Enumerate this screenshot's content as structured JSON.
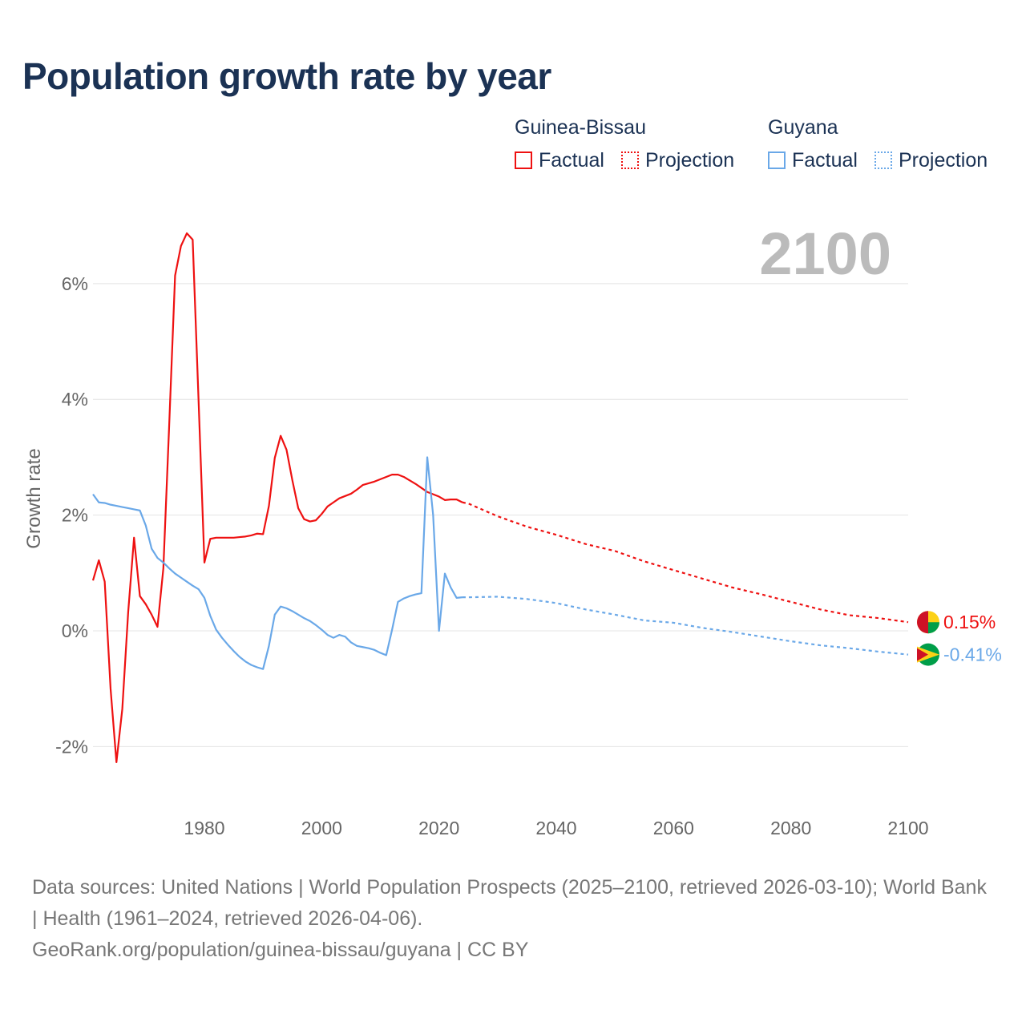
{
  "chart_data": {
    "type": "line",
    "title": "Population growth rate by year",
    "ylabel": "Growth rate",
    "xlabel": "",
    "xlim": [
      1961,
      2100
    ],
    "ylim": [
      -2.95,
      7.3
    ],
    "x_ticks": [
      1980,
      2000,
      2020,
      2040,
      2060,
      2080,
      2100
    ],
    "x_tick_labels": [
      "1980",
      "2000",
      "2020",
      "2040",
      "2060",
      "2080",
      "2100"
    ],
    "y_ticks": [
      -2,
      0,
      2,
      4,
      6
    ],
    "y_tick_labels": [
      "-2%",
      "0%",
      "2%",
      "4%",
      "6%"
    ],
    "grid": true,
    "legend_position": "top-right",
    "year_label": "2100",
    "legend": {
      "group1": "Guinea-Bissau",
      "group2": "Guyana",
      "factual": "Factual",
      "projection": "Projection"
    },
    "series": [
      {
        "name": "Guinea-Bissau",
        "color": "#ee1111",
        "end_label": "0.15%",
        "factual": {
          "x": [
            1961,
            1962,
            1963,
            1964,
            1965,
            1966,
            1967,
            1968,
            1969,
            1970,
            1971,
            1972,
            1973,
            1974,
            1975,
            1976,
            1977,
            1978,
            1979,
            1980,
            1981,
            1982,
            1983,
            1984,
            1985,
            1986,
            1987,
            1988,
            1989,
            1990,
            1991,
            1992,
            1993,
            1994,
            1995,
            1996,
            1997,
            1998,
            1999,
            2000,
            2001,
            2002,
            2003,
            2004,
            2005,
            2006,
            2007,
            2008,
            2009,
            2010,
            2011,
            2012,
            2013,
            2014,
            2015,
            2016,
            2017,
            2018,
            2019,
            2020,
            2021,
            2022,
            2023,
            2024
          ],
          "y": [
            0.87,
            1.22,
            0.85,
            -1.0,
            -2.27,
            -1.35,
            0.32,
            1.61,
            0.6,
            0.46,
            0.28,
            0.07,
            1.08,
            3.57,
            6.14,
            6.65,
            6.87,
            6.76,
            3.99,
            1.18,
            1.59,
            1.61,
            1.61,
            1.61,
            1.61,
            1.62,
            1.63,
            1.65,
            1.68,
            1.67,
            2.16,
            2.99,
            3.37,
            3.13,
            2.6,
            2.12,
            1.93,
            1.89,
            1.91,
            2.02,
            2.15,
            2.22,
            2.29,
            2.33,
            2.37,
            2.44,
            2.52,
            2.55,
            2.58,
            2.62,
            2.66,
            2.7,
            2.7,
            2.66,
            2.6,
            2.54,
            2.47,
            2.4,
            2.36,
            2.32,
            2.26,
            2.27,
            2.27,
            2.22
          ]
        },
        "projection": {
          "x": [
            2024,
            2025,
            2030,
            2035,
            2040,
            2045,
            2050,
            2055,
            2060,
            2065,
            2070,
            2075,
            2080,
            2085,
            2090,
            2095,
            2100
          ],
          "y": [
            2.22,
            2.2,
            1.98,
            1.8,
            1.66,
            1.5,
            1.38,
            1.2,
            1.05,
            0.9,
            0.75,
            0.63,
            0.5,
            0.37,
            0.27,
            0.22,
            0.15
          ]
        }
      },
      {
        "name": "Guyana",
        "color": "#6aa8e8",
        "end_label": "-0.41%",
        "factual": {
          "x": [
            1961,
            1962,
            1963,
            1964,
            1965,
            1966,
            1967,
            1968,
            1969,
            1970,
            1971,
            1972,
            1973,
            1974,
            1975,
            1976,
            1977,
            1978,
            1979,
            1980,
            1981,
            1982,
            1983,
            1984,
            1985,
            1986,
            1987,
            1988,
            1989,
            1990,
            1991,
            1992,
            1993,
            1994,
            1995,
            1996,
            1997,
            1998,
            1999,
            2000,
            2001,
            2002,
            2003,
            2004,
            2005,
            2006,
            2007,
            2008,
            2009,
            2010,
            2011,
            2012,
            2013,
            2014,
            2015,
            2016,
            2017,
            2018,
            2019,
            2020,
            2021,
            2022,
            2023,
            2024
          ],
          "y": [
            2.36,
            2.22,
            2.21,
            2.18,
            2.16,
            2.14,
            2.12,
            2.1,
            2.08,
            1.82,
            1.42,
            1.26,
            1.18,
            1.08,
            0.99,
            0.92,
            0.85,
            0.78,
            0.72,
            0.57,
            0.26,
            0.02,
            -0.12,
            -0.24,
            -0.35,
            -0.45,
            -0.53,
            -0.59,
            -0.63,
            -0.66,
            -0.26,
            0.28,
            0.42,
            0.39,
            0.34,
            0.28,
            0.22,
            0.17,
            0.1,
            0.02,
            -0.07,
            -0.12,
            -0.07,
            -0.1,
            -0.2,
            -0.26,
            -0.28,
            -0.3,
            -0.33,
            -0.38,
            -0.42,
            0.02,
            0.5,
            0.56,
            0.6,
            0.63,
            0.65,
            3.0,
            2.0,
            0.0,
            0.99,
            0.75,
            0.57,
            0.58
          ]
        },
        "projection": {
          "x": [
            2024,
            2025,
            2030,
            2035,
            2040,
            2045,
            2050,
            2055,
            2060,
            2065,
            2070,
            2075,
            2080,
            2085,
            2090,
            2095,
            2100
          ],
          "y": [
            0.58,
            0.58,
            0.59,
            0.55,
            0.48,
            0.37,
            0.28,
            0.18,
            0.14,
            0.05,
            -0.02,
            -0.1,
            -0.18,
            -0.25,
            -0.3,
            -0.36,
            -0.41
          ]
        }
      }
    ]
  },
  "footer": {
    "sources": "Data sources: United Nations | World Population Prospects (2025–2100, retrieved 2026-03-10); World Bank | Health (1961–2024, retrieved 2026-04-06).",
    "credit": "GeoRank.org/population/guinea-bissau/guyana | CC BY"
  }
}
